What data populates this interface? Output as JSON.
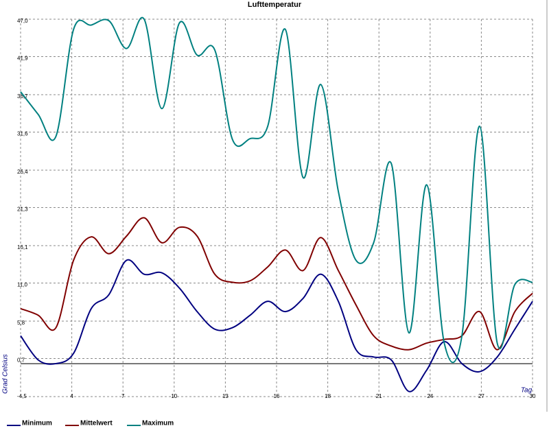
{
  "chart_data": {
    "type": "line",
    "title": "Lufttemperatur",
    "y_label": "Grad Celsius",
    "x_label": "Tag",
    "x": [
      1,
      2,
      3,
      4,
      5,
      6,
      7,
      8,
      9,
      10,
      11,
      12,
      13,
      14,
      15,
      16,
      17,
      18,
      19,
      20,
      21,
      22,
      23,
      24,
      25,
      26,
      27,
      28,
      29,
      30
    ],
    "xlim": [
      1,
      30
    ],
    "x_tick_labels": [
      "4",
      "7",
      "10",
      "13",
      "16",
      "18",
      "21",
      "24",
      "27",
      "30"
    ],
    "ylim": [
      -4.5,
      47.0
    ],
    "yticks": [
      {
        "value": -4.5,
        "label": "-4,5"
      },
      {
        "value": 0.7,
        "label": "0,7"
      },
      {
        "value": 5.8,
        "label": "5,8"
      },
      {
        "value": 11.0,
        "label": "11,0"
      },
      {
        "value": 16.1,
        "label": "16,1"
      },
      {
        "value": 21.3,
        "label": "21,3"
      },
      {
        "value": 26.4,
        "label": "26,4"
      },
      {
        "value": 31.6,
        "label": "31,6"
      },
      {
        "value": 36.7,
        "label": "36,7"
      },
      {
        "value": 41.9,
        "label": "41,9"
      },
      {
        "value": 47.0,
        "label": "47,0"
      }
    ],
    "grid": true,
    "reference_line": 0,
    "legend": "bottom-left",
    "series": [
      {
        "name": "Minimum",
        "color": "#000080",
        "values": [
          3.8,
          0.5,
          0.0,
          1.4,
          7.5,
          9.4,
          14.1,
          12.2,
          12.4,
          10.3,
          7.1,
          4.7,
          4.9,
          6.6,
          8.5,
          7.1,
          8.9,
          12.2,
          8.5,
          1.9,
          0.9,
          0.5,
          -3.8,
          -0.9,
          3.0,
          0.0,
          -1.1,
          0.9,
          4.7,
          8.5
        ]
      },
      {
        "name": "Mittelwert",
        "color": "#800000",
        "values": [
          7.5,
          6.6,
          4.9,
          14.1,
          17.3,
          15.0,
          17.4,
          19.9,
          16.5,
          18.6,
          17.4,
          12.2,
          11.1,
          11.3,
          13.2,
          15.5,
          12.7,
          17.2,
          12.7,
          8.0,
          3.8,
          2.4,
          1.9,
          2.8,
          3.3,
          3.8,
          7.1,
          1.9,
          7.1,
          9.6
        ]
      },
      {
        "name": "Maximum",
        "color": "#008080",
        "values": [
          37.1,
          34.0,
          31.0,
          45.6,
          46.2,
          46.8,
          43.0,
          47.0,
          34.8,
          46.5,
          42.1,
          42.8,
          30.6,
          30.7,
          32.4,
          45.6,
          25.4,
          38.1,
          23.5,
          14.1,
          16.5,
          27.3,
          4.2,
          24.4,
          2.8,
          3.8,
          32.4,
          2.8,
          10.8,
          11.1
        ]
      }
    ]
  }
}
